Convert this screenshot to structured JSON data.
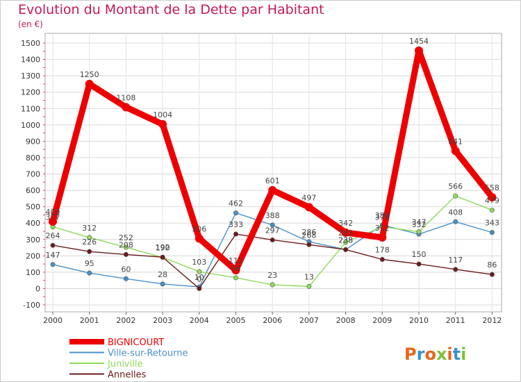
{
  "chart_data": {
    "type": "line",
    "title": "Evolution du Montant de la Dette par Habitant",
    "unit_label": "(en €)",
    "x": [
      "2000",
      "2001",
      "2002",
      "2003",
      "2004",
      "2005",
      "2006",
      "2007",
      "2008",
      "2009",
      "2010",
      "2011",
      "2012"
    ],
    "ylim": [
      -100,
      1500
    ],
    "yticks": [
      -100,
      0,
      100,
      200,
      300,
      400,
      500,
      600,
      700,
      800,
      900,
      1000,
      1100,
      1200,
      1300,
      1400,
      1500
    ],
    "grid": true,
    "legend_position": "bottom-left",
    "series": [
      {
        "name": "BIGNICOURT",
        "color": "#ee0000",
        "values": [
          409,
          1250,
          1108,
          1004,
          306,
          112,
          601,
          497,
          342,
          312,
          1454,
          841,
          558
        ]
      },
      {
        "name": "Ville-sur-Retourne",
        "color": "#4a90c8",
        "values": [
          147,
          95,
          60,
          28,
          10,
          462,
          388,
          286,
          238,
          388,
          332,
          408,
          343
        ]
      },
      {
        "name": "Juniville",
        "color": "#8edb5a",
        "values": [
          377,
          312,
          252,
          190,
          103,
          66,
          23,
          13,
          283,
          377,
          347,
          566,
          479
        ]
      },
      {
        "name": "Annelles",
        "color": "#6b1a1a",
        "values": [
          264,
          226,
          208,
          192,
          0,
          333,
          297,
          268,
          238,
          178,
          150,
          117,
          86
        ]
      }
    ]
  },
  "brand": "Proxiti"
}
